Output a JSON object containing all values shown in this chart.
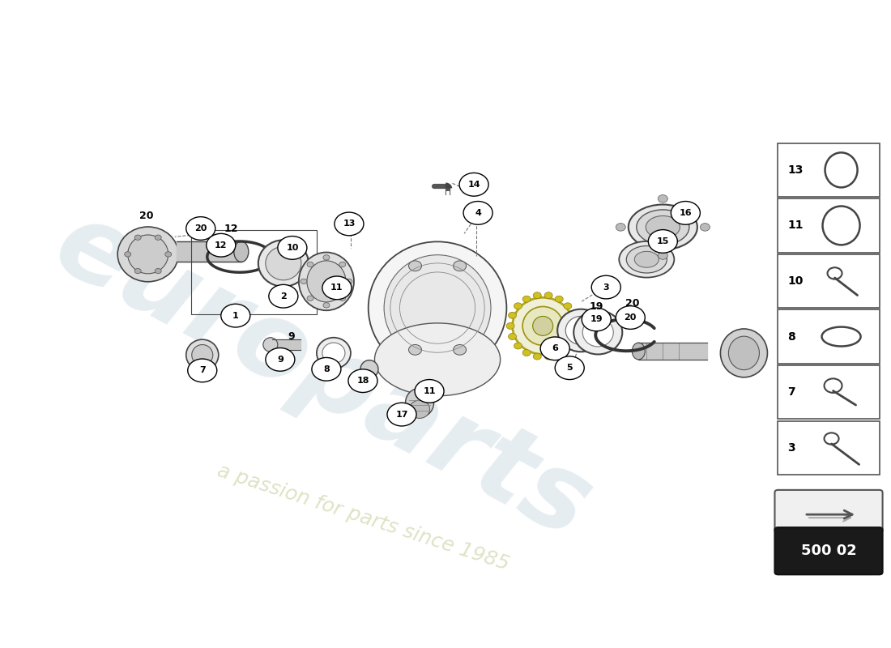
{
  "bg_color": "#ffffff",
  "watermark_text": "europarts",
  "watermark_subtext": "a passion for parts since 1985",
  "page_code": "500 02",
  "legend_items": [
    {
      "num": "13",
      "shape": "oval_thin"
    },
    {
      "num": "11",
      "shape": "oval_medium"
    },
    {
      "num": "10",
      "shape": "screw_bolt"
    },
    {
      "num": "8",
      "shape": "ring_open"
    },
    {
      "num": "7",
      "shape": "plug_bolt"
    },
    {
      "num": "3",
      "shape": "screw_long"
    }
  ],
  "callout_circle_r": 0.018,
  "line_color": "#333333",
  "dashed_color": "#777777"
}
